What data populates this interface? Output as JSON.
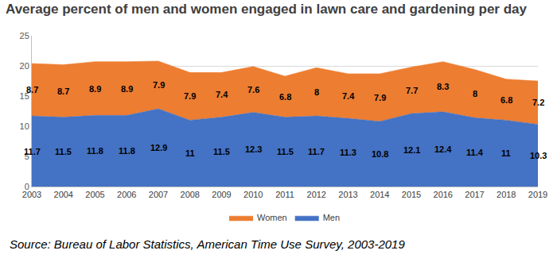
{
  "chart_data": {
    "type": "area",
    "title": "Average percent of men and women engaged in lawn care and gardening per day",
    "annotations": [
      "Source: Bureau of Labor Statistics, American Time Use Survey, 2003-2019"
    ],
    "x": [
      2003,
      2004,
      2005,
      2006,
      2007,
      2008,
      2009,
      2010,
      2011,
      2012,
      2013,
      2014,
      2015,
      2016,
      2017,
      2018,
      2019
    ],
    "series": [
      {
        "name": "Men",
        "color": "#4472c4",
        "values": [
          11.7,
          11.5,
          11.8,
          11.8,
          12.9,
          11,
          11.5,
          12.3,
          11.5,
          11.7,
          11.3,
          10.8,
          12.1,
          12.4,
          11.4,
          11,
          10.3
        ]
      },
      {
        "name": "Women",
        "color": "#ed7d31",
        "values": [
          8.7,
          8.7,
          8.9,
          8.9,
          7.9,
          7.9,
          7.4,
          7.6,
          6.8,
          8,
          7.4,
          7.9,
          7.7,
          8.3,
          8,
          6.8,
          7.2
        ]
      }
    ],
    "xlim": [
      2003,
      2019
    ],
    "xticks": [
      2003,
      2004,
      2005,
      2006,
      2007,
      2008,
      2009,
      2010,
      2011,
      2012,
      2013,
      2014,
      2015,
      2016,
      2017,
      2018,
      2019
    ],
    "ylim": [
      0,
      25
    ],
    "yticks": [
      0,
      5,
      10,
      15,
      20,
      25
    ],
    "stacked": true,
    "data_labels": true,
    "grid": true,
    "legend": "bottom"
  }
}
